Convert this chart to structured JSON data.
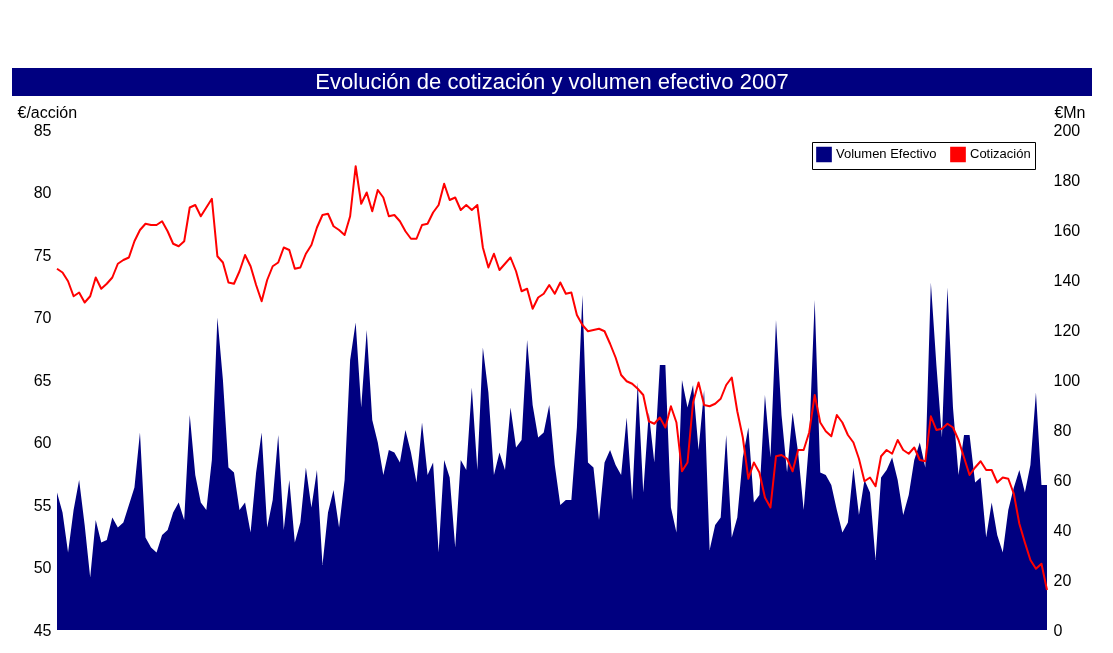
{
  "chart_data": {
    "type": "line",
    "title": "Evolución de cotización y volumen efectivo 2007",
    "ylabel": "€/acción",
    "y2label": "€Mn",
    "categories": [
      null,
      null,
      null,
      null,
      null,
      null,
      null,
      null,
      null,
      null,
      null,
      null,
      null,
      null,
      null,
      null,
      null,
      null,
      null,
      null,
      null,
      null,
      null,
      null,
      null,
      null,
      null,
      null,
      null,
      null,
      null,
      null,
      null,
      null,
      null,
      null,
      null,
      null,
      null,
      null,
      null,
      null,
      null,
      null,
      null,
      null,
      null,
      null,
      null,
      null,
      null,
      null,
      null,
      null,
      null,
      null,
      null,
      null,
      null,
      null,
      null,
      null,
      null,
      null,
      null,
      null,
      null,
      null,
      null,
      null,
      null,
      null,
      null,
      null,
      null,
      null,
      null,
      null,
      null,
      null,
      null,
      null,
      null,
      null,
      null,
      null,
      null,
      null,
      null,
      null,
      null,
      null,
      null,
      null,
      null,
      null,
      null,
      null,
      null,
      null,
      null,
      null,
      null,
      null,
      null,
      null,
      null,
      null,
      null,
      null,
      null,
      null,
      null,
      null,
      null,
      null,
      null,
      null,
      null,
      null,
      null,
      null,
      null,
      null,
      null,
      null,
      null,
      null,
      null,
      null,
      null,
      null,
      null,
      null,
      null,
      null,
      null,
      null,
      null,
      null,
      null,
      null,
      null,
      null,
      null,
      null,
      null,
      null,
      null,
      null,
      null,
      null,
      null,
      null,
      null,
      null,
      null,
      null,
      null,
      null,
      null,
      null,
      null,
      null,
      null,
      null,
      null,
      null,
      null,
      null,
      null,
      null,
      null,
      null,
      null,
      null,
      null,
      null,
      null,
      null
    ],
    "tick_labels": "y",
    "ylim": [
      45,
      85
    ],
    "yticks": [
      45,
      50,
      55,
      60,
      65,
      70,
      75,
      80,
      85
    ],
    "y2lim": [
      0,
      200
    ],
    "y2ticks": [
      0,
      20,
      40,
      60,
      80,
      100,
      120,
      140,
      160,
      180,
      200
    ],
    "legend": "top right",
    "marker": "none",
    "line_style": "solid",
    "series": [
      {
        "name": "Volumen Efectivo",
        "type": "area",
        "axis": "y2",
        "color": "#000080",
        "values": [
          55,
          47,
          31,
          48,
          60,
          42,
          21,
          44,
          35,
          36,
          45,
          41,
          43,
          50,
          57,
          79,
          37,
          33,
          31,
          38,
          40,
          47,
          51,
          44,
          86,
          62,
          51,
          48,
          68,
          125,
          100,
          65,
          63,
          48,
          51,
          39,
          63,
          79,
          41,
          52,
          78,
          40,
          60,
          35,
          43,
          65,
          49,
          64,
          26,
          47,
          56,
          41,
          60,
          108,
          123,
          89,
          120,
          84,
          75,
          62,
          72,
          71,
          67,
          80,
          71,
          59,
          83,
          62,
          67,
          31,
          68,
          61,
          33,
          68,
          64,
          97,
          64,
          113,
          95,
          62,
          71,
          64,
          89,
          73,
          76,
          116,
          90,
          77,
          79,
          90,
          66,
          50,
          52,
          52,
          81,
          134,
          67,
          65,
          44,
          67,
          72,
          66,
          62,
          85,
          52,
          99,
          55,
          87,
          67,
          106,
          106,
          49,
          39,
          100,
          89,
          98,
          72,
          96,
          32,
          42,
          45,
          78,
          37,
          45,
          69,
          81,
          51,
          54,
          94,
          69,
          124,
          86,
          63,
          87,
          71,
          48,
          76,
          132,
          63,
          62,
          58,
          48,
          39,
          43,
          65,
          46,
          60,
          55,
          28,
          61,
          64,
          69,
          60,
          46,
          54,
          68,
          75,
          65,
          139,
          106,
          77,
          137,
          89,
          62,
          78,
          78,
          59,
          61,
          37,
          51,
          38,
          31,
          48,
          57,
          64,
          55,
          66,
          95,
          58,
          58
        ]
      },
      {
        "name": "Cotización",
        "axis": "y",
        "color": "#ff0000",
        "values": [
          73.9,
          73.6,
          72.9,
          71.7,
          72.0,
          71.2,
          71.7,
          73.2,
          72.3,
          72.7,
          73.2,
          74.3,
          74.6,
          74.8,
          76.1,
          77.0,
          77.5,
          77.4,
          77.4,
          77.7,
          76.9,
          75.9,
          75.7,
          76.1,
          78.8,
          79.0,
          78.1,
          78.8,
          79.5,
          74.9,
          74.4,
          72.8,
          72.7,
          73.7,
          75.0,
          74.1,
          72.6,
          71.3,
          73.0,
          74.1,
          74.4,
          75.6,
          75.4,
          73.9,
          74.0,
          75.1,
          75.8,
          77.2,
          78.2,
          78.3,
          77.3,
          77.0,
          76.6,
          78.1,
          82.1,
          79.1,
          80.0,
          78.5,
          80.2,
          79.6,
          78.1,
          78.2,
          77.7,
          76.9,
          76.3,
          76.3,
          77.4,
          77.5,
          78.4,
          79.0,
          80.7,
          79.4,
          79.6,
          78.6,
          79.0,
          78.6,
          79.0,
          75.6,
          74.0,
          75.1,
          73.8,
          74.3,
          74.8,
          73.7,
          72.1,
          72.3,
          70.7,
          71.6,
          71.9,
          72.6,
          71.9,
          72.8,
          71.9,
          72.0,
          70.2,
          69.4,
          68.9,
          69.0,
          69.1,
          68.9,
          67.9,
          66.8,
          65.4,
          64.9,
          64.7,
          64.3,
          63.8,
          61.7,
          61.5,
          62.0,
          61.2,
          62.9,
          61.6,
          57.7,
          58.4,
          63.2,
          64.8,
          63.0,
          62.9,
          63.1,
          63.5,
          64.6,
          65.2,
          62.5,
          60.4,
          57.1,
          58.4,
          57.6,
          55.6,
          54.8,
          58.9,
          59.0,
          58.7,
          57.7,
          59.4,
          59.4,
          60.8,
          63.8,
          61.6,
          60.9,
          60.5,
          62.2,
          61.6,
          60.6,
          60.0,
          58.7,
          56.9,
          57.2,
          56.5,
          58.9,
          59.4,
          59.1,
          60.2,
          59.4,
          59.1,
          59.6,
          58.6,
          58.5,
          62.1,
          61.0,
          61.1,
          61.5,
          61.2,
          60.2,
          58.8,
          57.4,
          58.0,
          58.5,
          57.8,
          57.8,
          56.8,
          57.2,
          57.1,
          55.9,
          53.5,
          52.0,
          50.6,
          49.9,
          50.3,
          48.2
        ]
      }
    ]
  }
}
